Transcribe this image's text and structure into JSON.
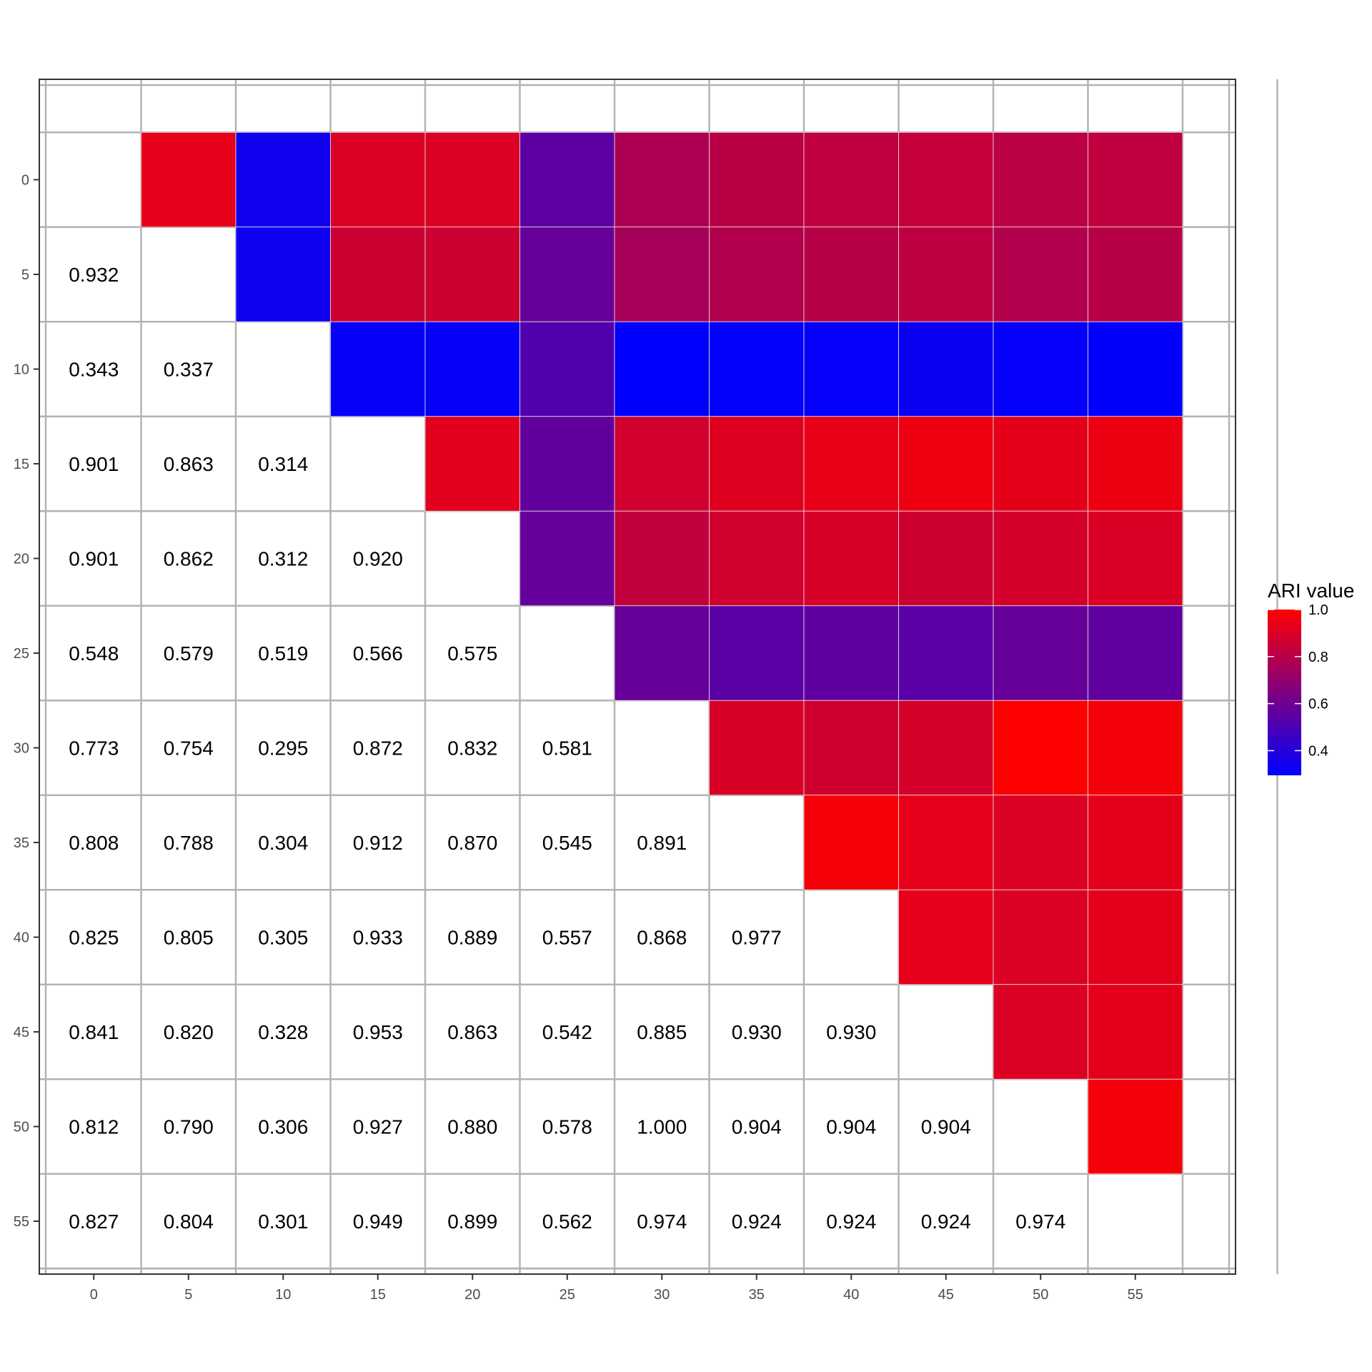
{
  "chart_data": {
    "type": "heatmap",
    "x_categories": [
      "0",
      "5",
      "10",
      "15",
      "20",
      "25",
      "30",
      "35",
      "40",
      "45",
      "50",
      "55"
    ],
    "y_categories": [
      "0",
      "5",
      "10",
      "15",
      "20",
      "25",
      "30",
      "35",
      "40",
      "45",
      "50",
      "55"
    ],
    "values_lower": [
      [
        null,
        null,
        null,
        null,
        null,
        null,
        null,
        null,
        null,
        null,
        null,
        null
      ],
      [
        0.932,
        null,
        null,
        null,
        null,
        null,
        null,
        null,
        null,
        null,
        null,
        null
      ],
      [
        0.343,
        0.337,
        null,
        null,
        null,
        null,
        null,
        null,
        null,
        null,
        null,
        null
      ],
      [
        0.901,
        0.863,
        0.314,
        null,
        null,
        null,
        null,
        null,
        null,
        null,
        null,
        null
      ],
      [
        0.901,
        0.862,
        0.312,
        0.92,
        null,
        null,
        null,
        null,
        null,
        null,
        null,
        null
      ],
      [
        0.548,
        0.579,
        0.519,
        0.566,
        0.575,
        null,
        null,
        null,
        null,
        null,
        null,
        null
      ],
      [
        0.773,
        0.754,
        0.295,
        0.872,
        0.832,
        0.581,
        null,
        null,
        null,
        null,
        null,
        null
      ],
      [
        0.808,
        0.788,
        0.304,
        0.912,
        0.87,
        0.545,
        0.891,
        null,
        null,
        null,
        null,
        null
      ],
      [
        0.825,
        0.805,
        0.305,
        0.933,
        0.889,
        0.557,
        0.868,
        0.977,
        null,
        null,
        null,
        null
      ],
      [
        0.841,
        0.82,
        0.328,
        0.953,
        0.863,
        0.542,
        0.885,
        0.93,
        0.93,
        null,
        null,
        null
      ],
      [
        0.812,
        0.79,
        0.306,
        0.927,
        0.88,
        0.578,
        1.0,
        0.904,
        0.904,
        0.904,
        null,
        null
      ],
      [
        0.827,
        0.804,
        0.301,
        0.949,
        0.899,
        0.562,
        0.974,
        0.924,
        0.924,
        0.924,
        0.974,
        null
      ]
    ],
    "upper_triangle": "color tiles mirroring values_lower",
    "legend": {
      "title": "ARI value",
      "ticks": [
        "1.0",
        "0.8",
        "0.6",
        "0.4"
      ],
      "tick_values": [
        1.0,
        0.8,
        0.6,
        0.4
      ],
      "range": [
        0.295,
        1.0
      ],
      "placement": "right"
    },
    "colors": {
      "low": "#0000ff",
      "high": "#ff0000",
      "grid": "#b3b3b3",
      "tile_border": "#e6e6e6",
      "panel_border": "#333333",
      "text": "#000000",
      "tick_text": "#4d4d4d"
    },
    "grid": true
  }
}
